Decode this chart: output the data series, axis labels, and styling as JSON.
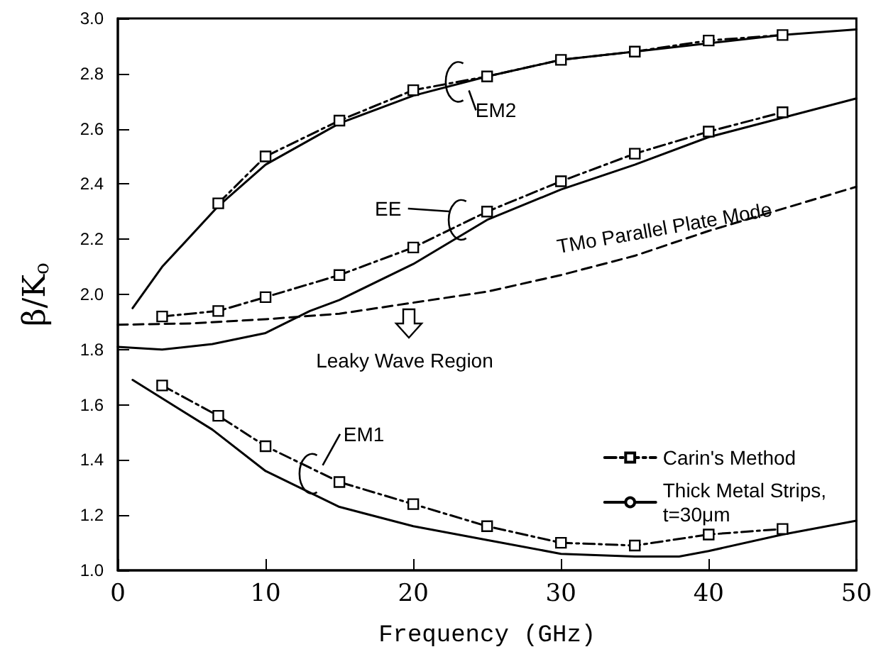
{
  "chart_data": {
    "type": "line",
    "xlabel": "Frequency (GHz)",
    "ylabel": "β/K$_{o}$",
    "xlim": [
      0,
      50
    ],
    "xticks": [
      0,
      10,
      20,
      30,
      40,
      50
    ],
    "ylim": [
      1,
      3
    ],
    "yticks": [
      {
        "value": 1,
        "label": "1.0"
      },
      {
        "value": 1.2,
        "label": "1.2"
      },
      {
        "value": 1.4,
        "label": "1.4"
      },
      {
        "value": 1.6,
        "label": "1.6"
      },
      {
        "value": 1.8,
        "label": "1.8"
      },
      {
        "value": 2,
        "label": "2.0"
      },
      {
        "value": 2.2,
        "label": "2.2"
      },
      {
        "value": 2.4,
        "label": "2.4"
      },
      {
        "value": 2.6,
        "label": "2.6"
      },
      {
        "value": 2.8,
        "label": "2.8"
      },
      {
        "value": 3,
        "label": "3.0"
      }
    ],
    "grid": false,
    "legend": "bottom right",
    "series": [
      {
        "name": "Carin's Method",
        "color": "#000000",
        "line_style": "dashdot",
        "marker": "square",
        "x": [
          6.8,
          10,
          15,
          20,
          25,
          30,
          35,
          40,
          45
        ],
        "values": [
          2.33,
          2.5,
          2.63,
          2.74,
          2.79,
          2.85,
          2.88,
          2.92,
          2.94
        ]
      },
      {
        "color": "#000000",
        "line_style": "dashdot",
        "marker": "square",
        "x": [
          3,
          6.8,
          10,
          15,
          20,
          25,
          30,
          35,
          40,
          45
        ],
        "values": [
          1.92,
          1.94,
          1.99,
          2.07,
          2.17,
          2.3,
          2.41,
          2.51,
          2.59,
          2.66
        ]
      },
      {
        "color": "#000000",
        "line_style": "dashdot",
        "marker": "square",
        "x": [
          3,
          6.8,
          10,
          15,
          20,
          25,
          30,
          35,
          40,
          45
        ],
        "values": [
          1.67,
          1.56,
          1.45,
          1.32,
          1.24,
          1.16,
          1.1,
          1.09,
          1.13,
          1.15
        ]
      },
      {
        "name": "Thick Metal Strips, t=30μm",
        "color": "#000000",
        "line_style": "solid",
        "marker": "none",
        "x": [
          1,
          3,
          6.8,
          10,
          15,
          20,
          25,
          30,
          35,
          40,
          45,
          50
        ],
        "values": [
          1.95,
          2.1,
          2.32,
          2.47,
          2.62,
          2.72,
          2.79,
          2.85,
          2.88,
          2.91,
          2.94,
          2.96
        ]
      },
      {
        "color": "#000000",
        "line_style": "solid",
        "marker": "none",
        "x": [
          0,
          3,
          6.4,
          10,
          13,
          15,
          20,
          25,
          30,
          35,
          40,
          45,
          50
        ],
        "values": [
          1.81,
          1.8,
          1.82,
          1.86,
          1.94,
          1.98,
          2.11,
          2.27,
          2.38,
          2.47,
          2.57,
          2.64,
          2.71
        ]
      },
      {
        "color": "#000000",
        "line_style": "solid",
        "marker": "none",
        "x": [
          1,
          6.4,
          10,
          15,
          20,
          25,
          30,
          35,
          38,
          40,
          45,
          50
        ],
        "values": [
          1.69,
          1.51,
          1.36,
          1.23,
          1.16,
          1.11,
          1.06,
          1.05,
          1.05,
          1.07,
          1.13,
          1.18
        ]
      },
      {
        "color": "#000000",
        "line_style": "dashed",
        "marker": "none",
        "x": [
          0,
          5,
          10,
          15,
          20,
          25,
          30,
          35,
          40,
          45,
          50
        ],
        "values": [
          1.89,
          1.895,
          1.91,
          1.93,
          1.97,
          2.01,
          2.07,
          2.14,
          2.23,
          2.31,
          2.39
        ]
      }
    ],
    "annotations": [
      {
        "text": "EM2",
        "x": 23,
        "y": 2.77
      },
      {
        "text": "EE",
        "x": 23.2,
        "y": 2.27
      },
      {
        "text": "EM1",
        "x": 13.1,
        "y": 1.35
      },
      {
        "text": "TMo Parallel Plate Mode",
        "x": 37,
        "y": 2.17
      },
      "Leaky Wave Region"
    ]
  }
}
